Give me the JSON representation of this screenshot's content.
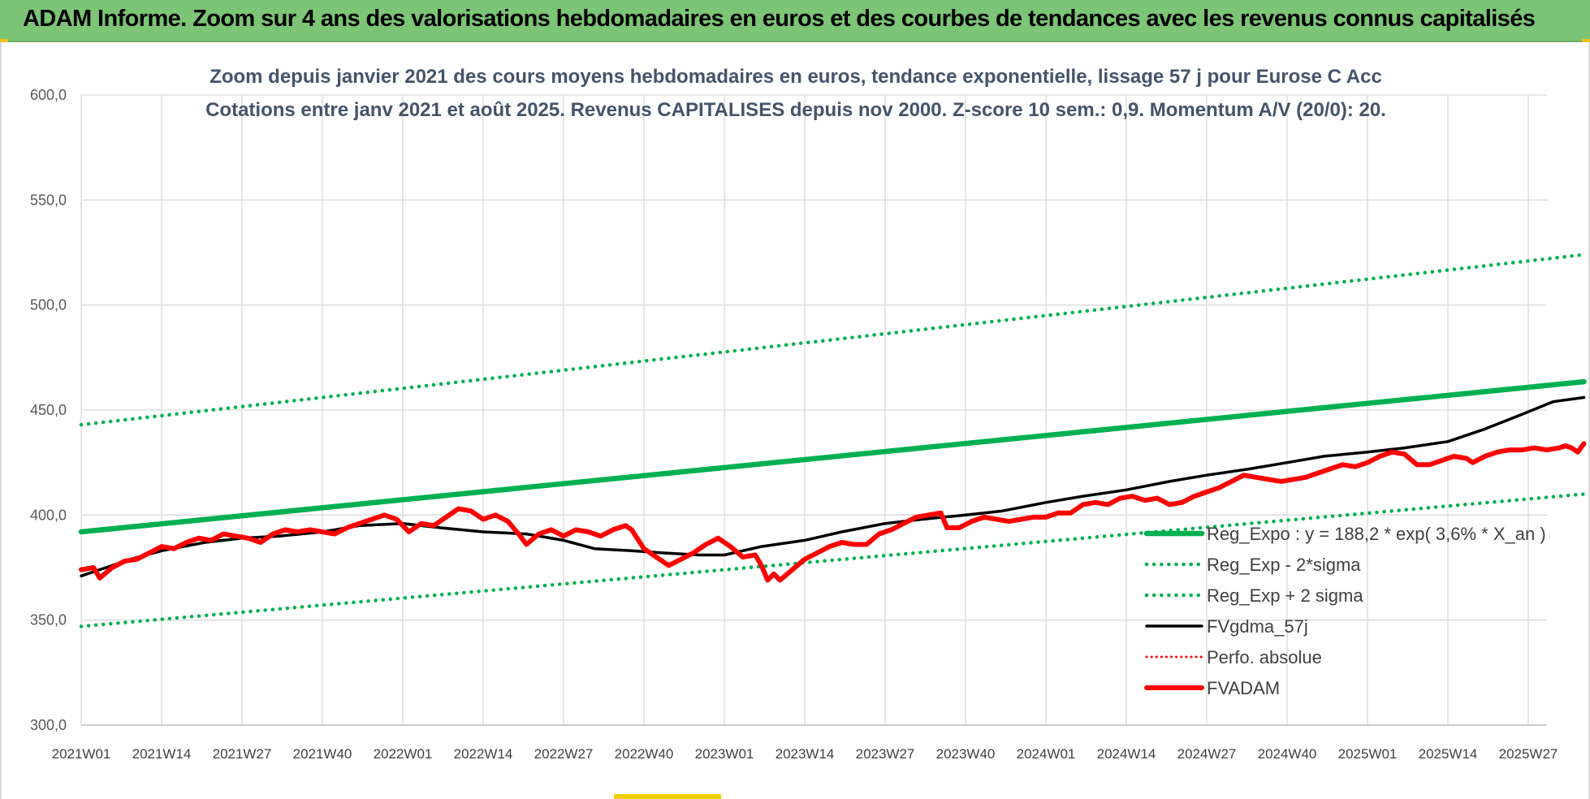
{
  "banner": {
    "title": "ADAM Informe. Zoom sur 4 ans des valorisations hebdomadaires en euros et des courbes de tendances avec les revenus connus capitalisés"
  },
  "colors": {
    "banner_bg": "#7cc576",
    "trend": "#00b050",
    "smooth": "#000000",
    "price": "#ff0000",
    "grid": "#d9d9d9",
    "title_text": "#44546a"
  },
  "chart_data": {
    "type": "line",
    "title": "Zoom depuis janvier 2021 des cours moyens hebdomadaires en euros, tendance exponentielle, lissage 57 j pour Eurose C Acc",
    "subtitle": "Cotations entre janv 2021 et août 2025. Revenus CAPITALISES depuis nov 2000. Z-score 10 sem.: 0,9. Momentum A/V (20/0): 20.",
    "xlabel": "",
    "ylabel": "",
    "ylim": [
      300,
      600
    ],
    "y_ticks": [
      "300,0",
      "350,0",
      "400,0",
      "450,0",
      "500,0",
      "550,0",
      "600,0"
    ],
    "y_tick_values": [
      300,
      350,
      400,
      450,
      500,
      550,
      600
    ],
    "x_tick_labels": [
      "2021W01",
      "2021W14",
      "2021W27",
      "2021W40",
      "2022W01",
      "2022W14",
      "2022W27",
      "2022W40",
      "2023W01",
      "2023W14",
      "2023W27",
      "2023W40",
      "2024W01",
      "2024W14",
      "2024W27",
      "2024W40",
      "2025W01",
      "2025W14",
      "2025W27"
    ],
    "x_range_weeks": [
      0,
      243
    ],
    "tick_step_weeks": 13,
    "grid": true,
    "legend_position": "right",
    "series": [
      {
        "name": "Reg_Expo : y = 188,2 * exp( 3,6% *  X_an )",
        "style": "solid-thick",
        "color": "#00b050",
        "points": [
          [
            0,
            392
          ],
          [
            243,
            463.5
          ]
        ]
      },
      {
        "name": "Reg_Exp - 2*sigma",
        "style": "dotted",
        "color": "#00b050",
        "points": [
          [
            0,
            347
          ],
          [
            243,
            410
          ]
        ]
      },
      {
        "name": "Reg_Exp + 2 sigma",
        "style": "dotted",
        "color": "#00b050",
        "points": [
          [
            0,
            443
          ],
          [
            243,
            524
          ]
        ]
      },
      {
        "name": "FVgdma_57j",
        "style": "solid",
        "color": "#000000",
        "points": [
          [
            0,
            371
          ],
          [
            8,
            379
          ],
          [
            13,
            383
          ],
          [
            20,
            387
          ],
          [
            26,
            389
          ],
          [
            32,
            390
          ],
          [
            39,
            392
          ],
          [
            45,
            395
          ],
          [
            52,
            396
          ],
          [
            58,
            394
          ],
          [
            65,
            392
          ],
          [
            72,
            391
          ],
          [
            78,
            388
          ],
          [
            83,
            384
          ],
          [
            89,
            383
          ],
          [
            94,
            382
          ],
          [
            100,
            381
          ],
          [
            104,
            381
          ],
          [
            110,
            385
          ],
          [
            117,
            388
          ],
          [
            123,
            392
          ],
          [
            130,
            396
          ],
          [
            136,
            398
          ],
          [
            143,
            400
          ],
          [
            149,
            402
          ],
          [
            156,
            406
          ],
          [
            162,
            409
          ],
          [
            169,
            412
          ],
          [
            176,
            416
          ],
          [
            182,
            419
          ],
          [
            189,
            422
          ],
          [
            195,
            425
          ],
          [
            201,
            428
          ],
          [
            208,
            430
          ],
          [
            214,
            432
          ],
          [
            221,
            435
          ],
          [
            227,
            441
          ],
          [
            233,
            448
          ],
          [
            238,
            454
          ],
          [
            243,
            456
          ]
        ]
      },
      {
        "name": "Perfo. absolue",
        "style": "dotted-thin",
        "color": "#ff0000",
        "points": []
      },
      {
        "name": "FVADAM",
        "style": "solid-thick",
        "color": "#ff0000",
        "points": [
          [
            0,
            374
          ],
          [
            2,
            375
          ],
          [
            3,
            370
          ],
          [
            5,
            375
          ],
          [
            7,
            378
          ],
          [
            9,
            379
          ],
          [
            11,
            382
          ],
          [
            13,
            385
          ],
          [
            15,
            384
          ],
          [
            17,
            387
          ],
          [
            19,
            389
          ],
          [
            21,
            388
          ],
          [
            23,
            391
          ],
          [
            25,
            390
          ],
          [
            27,
            389
          ],
          [
            29,
            387
          ],
          [
            31,
            391
          ],
          [
            33,
            393
          ],
          [
            35,
            392
          ],
          [
            37,
            393
          ],
          [
            39,
            392
          ],
          [
            41,
            391
          ],
          [
            43,
            394
          ],
          [
            45,
            396
          ],
          [
            47,
            398
          ],
          [
            49,
            400
          ],
          [
            51,
            398
          ],
          [
            53,
            392
          ],
          [
            55,
            396
          ],
          [
            57,
            395
          ],
          [
            59,
            399
          ],
          [
            61,
            403
          ],
          [
            63,
            402
          ],
          [
            65,
            398
          ],
          [
            67,
            400
          ],
          [
            69,
            397
          ],
          [
            71,
            390
          ],
          [
            72,
            386
          ],
          [
            74,
            391
          ],
          [
            76,
            393
          ],
          [
            78,
            390
          ],
          [
            80,
            393
          ],
          [
            82,
            392
          ],
          [
            84,
            390
          ],
          [
            86,
            393
          ],
          [
            88,
            395
          ],
          [
            89,
            393
          ],
          [
            91,
            384
          ],
          [
            93,
            380
          ],
          [
            95,
            376
          ],
          [
            97,
            379
          ],
          [
            99,
            382
          ],
          [
            101,
            386
          ],
          [
            103,
            389
          ],
          [
            105,
            385
          ],
          [
            107,
            380
          ],
          [
            109,
            381
          ],
          [
            110,
            376
          ],
          [
            111,
            369
          ],
          [
            112,
            372
          ],
          [
            113,
            369
          ],
          [
            115,
            374
          ],
          [
            117,
            379
          ],
          [
            119,
            382
          ],
          [
            121,
            385
          ],
          [
            123,
            387
          ],
          [
            125,
            386
          ],
          [
            127,
            386
          ],
          [
            129,
            391
          ],
          [
            131,
            393
          ],
          [
            133,
            396
          ],
          [
            135,
            399
          ],
          [
            137,
            400
          ],
          [
            139,
            401
          ],
          [
            140,
            394
          ],
          [
            142,
            394
          ],
          [
            144,
            397
          ],
          [
            146,
            399
          ],
          [
            148,
            398
          ],
          [
            150,
            397
          ],
          [
            152,
            398
          ],
          [
            154,
            399
          ],
          [
            156,
            399
          ],
          [
            158,
            401
          ],
          [
            160,
            401
          ],
          [
            162,
            405
          ],
          [
            164,
            406
          ],
          [
            166,
            405
          ],
          [
            168,
            408
          ],
          [
            170,
            409
          ],
          [
            172,
            407
          ],
          [
            174,
            408
          ],
          [
            176,
            405
          ],
          [
            178,
            406
          ],
          [
            180,
            409
          ],
          [
            182,
            411
          ],
          [
            184,
            413
          ],
          [
            186,
            416
          ],
          [
            188,
            419
          ],
          [
            190,
            418
          ],
          [
            192,
            417
          ],
          [
            194,
            416
          ],
          [
            196,
            417
          ],
          [
            198,
            418
          ],
          [
            200,
            420
          ],
          [
            202,
            422
          ],
          [
            204,
            424
          ],
          [
            206,
            423
          ],
          [
            208,
            425
          ],
          [
            210,
            428
          ],
          [
            212,
            430
          ],
          [
            214,
            429
          ],
          [
            216,
            424
          ],
          [
            218,
            424
          ],
          [
            220,
            426
          ],
          [
            222,
            428
          ],
          [
            224,
            427
          ],
          [
            225,
            425
          ],
          [
            227,
            428
          ],
          [
            229,
            430
          ],
          [
            231,
            431
          ],
          [
            233,
            431
          ],
          [
            235,
            432
          ],
          [
            237,
            431
          ],
          [
            239,
            432
          ],
          [
            240,
            433
          ],
          [
            241,
            432
          ],
          [
            242,
            430
          ],
          [
            243,
            434
          ]
        ]
      }
    ]
  }
}
